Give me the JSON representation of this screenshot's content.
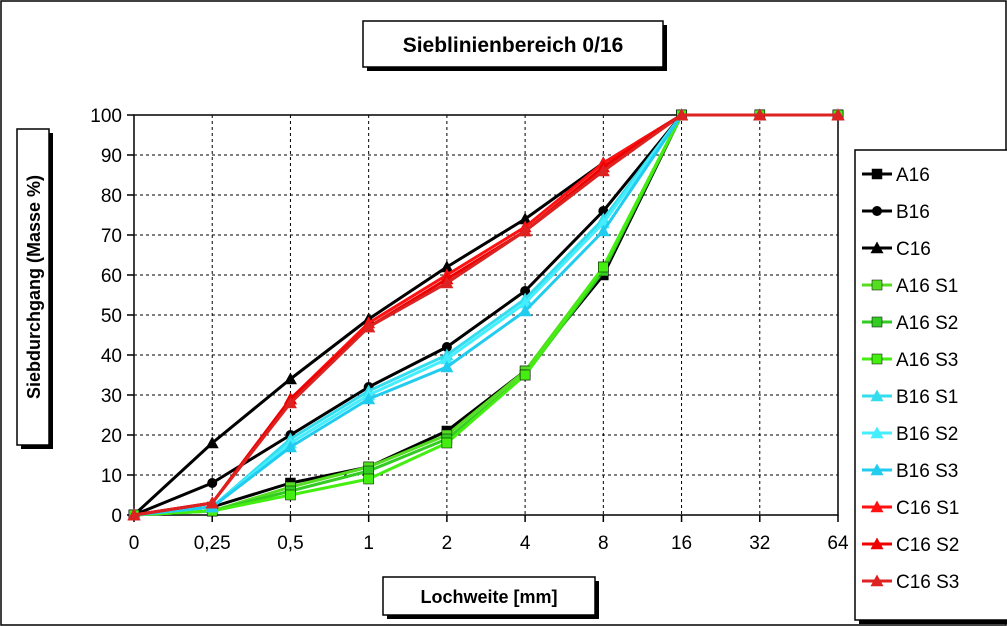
{
  "chart_data": {
    "type": "line",
    "title": "Sieblinienbereich 0/16",
    "xlabel": "Lochweite [mm]",
    "ylabel": "Siebdurchgang (Masse %)",
    "categories": [
      "0",
      "0,25",
      "0,5",
      "1",
      "2",
      "4",
      "8",
      "16",
      "32",
      "64"
    ],
    "ylim": [
      0,
      100
    ],
    "yticks": [
      "0",
      "10",
      "20",
      "30",
      "40",
      "50",
      "60",
      "70",
      "80",
      "90",
      "100"
    ],
    "grid": "dashed horizontal and vertical",
    "legend_position": "right",
    "series": [
      {
        "name": "A16",
        "color": "#000000",
        "marker": "square",
        "values": [
          0,
          2,
          8,
          12,
          21,
          36,
          60,
          100,
          100,
          100
        ]
      },
      {
        "name": "B16",
        "color": "#000000",
        "marker": "circle",
        "values": [
          0,
          8,
          20,
          32,
          42,
          56,
          76,
          100,
          100,
          100
        ]
      },
      {
        "name": "C16",
        "color": "#000000",
        "marker": "triangle",
        "values": [
          0,
          18,
          34,
          49,
          62,
          74,
          88,
          100,
          100,
          100
        ]
      },
      {
        "name": "A16 S1",
        "color": "#55dd22",
        "marker": "square",
        "values": [
          0,
          1,
          7,
          12,
          20,
          36,
          62,
          100,
          100,
          100
        ]
      },
      {
        "name": "A16 S2",
        "color": "#33cc22",
        "marker": "square",
        "values": [
          0,
          1,
          6,
          11,
          19,
          35,
          61,
          100,
          100,
          100
        ]
      },
      {
        "name": "A16 S3",
        "color": "#44ee11",
        "marker": "square",
        "values": [
          0,
          1,
          5,
          9,
          18,
          35,
          62,
          100,
          100,
          100
        ]
      },
      {
        "name": "B16 S1",
        "color": "#33ddee",
        "marker": "triangle",
        "values": [
          0,
          2,
          19,
          31,
          40,
          54,
          74,
          100,
          100,
          100
        ]
      },
      {
        "name": "B16 S2",
        "color": "#44eeff",
        "marker": "triangle",
        "values": [
          0,
          2,
          18,
          30,
          39,
          53,
          73,
          100,
          100,
          100
        ]
      },
      {
        "name": "B16 S3",
        "color": "#22ccee",
        "marker": "triangle",
        "values": [
          0,
          2,
          17,
          29,
          37,
          51,
          71,
          100,
          100,
          100
        ]
      },
      {
        "name": "C16 S1",
        "color": "#ff1111",
        "marker": "triangle",
        "values": [
          0,
          3,
          29,
          48,
          60,
          72,
          88,
          100,
          100,
          100
        ]
      },
      {
        "name": "C16 S2",
        "color": "#ee0000",
        "marker": "triangle",
        "values": [
          0,
          3,
          29,
          47,
          59,
          71,
          87,
          100,
          100,
          100
        ]
      },
      {
        "name": "C16 S3",
        "color": "#dd2222",
        "marker": "triangle",
        "values": [
          0,
          3,
          28,
          47,
          58,
          71,
          86,
          100,
          100,
          100
        ]
      }
    ]
  }
}
